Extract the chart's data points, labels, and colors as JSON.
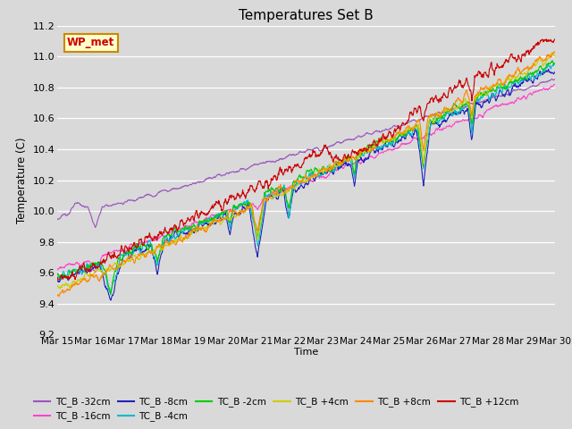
{
  "title": "Temperatures Set B",
  "xlabel": "Time",
  "ylabel": "Temperature (C)",
  "ylim": [
    9.2,
    11.2
  ],
  "xlim": [
    0,
    1440
  ],
  "bg_color": "#d9d9d9",
  "series": [
    {
      "label": "TC_B -32cm",
      "color": "#9955bb"
    },
    {
      "label": "TC_B -16cm",
      "color": "#ff44cc"
    },
    {
      "label": "TC_B -8cm",
      "color": "#2222bb"
    },
    {
      "label": "TC_B -4cm",
      "color": "#00bbcc"
    },
    {
      "label": "TC_B -2cm",
      "color": "#00cc00"
    },
    {
      "label": "TC_B +4cm",
      "color": "#cccc00"
    },
    {
      "label": "TC_B +8cm",
      "color": "#ff8800"
    },
    {
      "label": "TC_B +12cm",
      "color": "#cc0000"
    }
  ],
  "xtick_labels": [
    "Mar 15",
    "Mar 16",
    "Mar 17",
    "Mar 18",
    "Mar 19",
    "Mar 20",
    "Mar 21",
    "Mar 22",
    "Mar 23",
    "Mar 24",
    "Mar 25",
    "Mar 26",
    "Mar 27",
    "Mar 28",
    "Mar 29",
    "Mar 30"
  ],
  "xtick_positions": [
    0,
    96,
    192,
    288,
    384,
    480,
    576,
    672,
    768,
    864,
    960,
    1056,
    1152,
    1248,
    1344,
    1440
  ],
  "yticks": [
    9.2,
    9.4,
    9.6,
    9.8,
    10.0,
    10.2,
    10.4,
    10.6,
    10.8,
    11.0,
    11.2
  ],
  "wp_met_label": "WP_met",
  "wp_met_color": "#cc0000",
  "wp_met_bg": "#ffffcc",
  "wp_met_border": "#cc8800"
}
